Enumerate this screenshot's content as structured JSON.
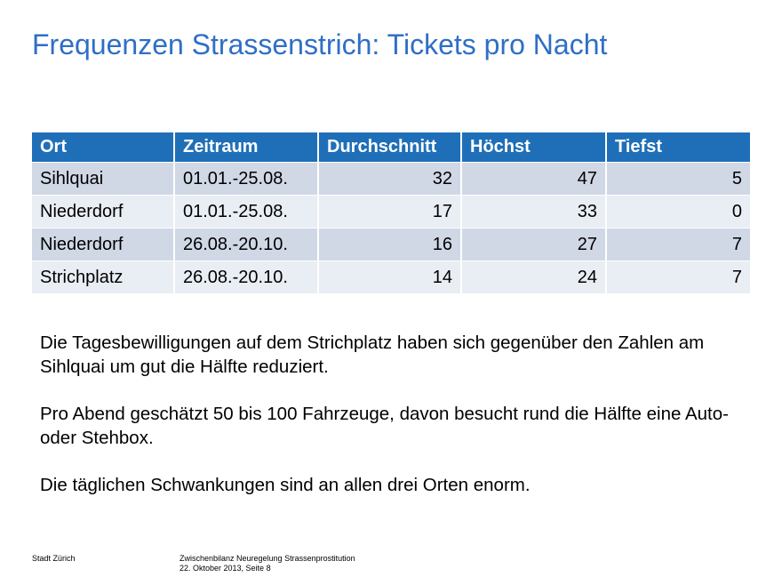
{
  "slide": {
    "title": "Frequenzen Strassenstrich: Tickets pro Nacht"
  },
  "table": {
    "headers": [
      "Ort",
      "Zeitraum",
      "Durchschnitt",
      "Höchst",
      "Tiefst"
    ],
    "rows": [
      [
        "Sihlquai",
        "01.01.-25.08.",
        "32",
        "47",
        "5"
      ],
      [
        "Niederdorf",
        "01.01.-25.08.",
        "17",
        "33",
        "0"
      ],
      [
        "Niederdorf",
        "26.08.-20.10.",
        "16",
        "27",
        "7"
      ],
      [
        "Strichplatz",
        "26.08.-20.10.",
        "14",
        "24",
        "7"
      ]
    ]
  },
  "notes": [
    "Die Tagesbewilligungen auf dem Strichplatz haben sich gegenüber den Zahlen am Sihlquai um gut die Hälfte reduziert.",
    "Pro Abend geschätzt  50 bis 100 Fahrzeuge, davon besucht rund die Hälfte eine Auto- oder Stehbox.",
    "Die täglichen Schwankungen sind an allen drei Orten enorm."
  ],
  "footer": {
    "left": "Stadt Zürich",
    "line1": "Zwischenbilanz Neuregelung Strassenprostitution",
    "line2": "22. Oktober 2013, Seite 8"
  },
  "colors": {
    "title": "#2f6fc6",
    "header_bg": "#1f6fb8",
    "row_odd": "#d0d8e6",
    "row_even": "#e9edf4"
  }
}
